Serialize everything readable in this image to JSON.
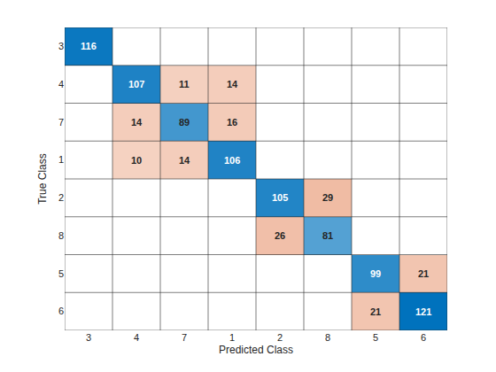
{
  "chart_data": {
    "type": "confusion_matrix",
    "x_label": "Predicted Class",
    "y_label": "True Class",
    "categories": [
      "3",
      "4",
      "7",
      "1",
      "2",
      "8",
      "5",
      "6"
    ],
    "cells": [
      [
        116,
        null,
        null,
        null,
        null,
        null,
        null,
        null
      ],
      [
        null,
        107,
        11,
        14,
        null,
        null,
        null,
        null
      ],
      [
        null,
        14,
        89,
        16,
        null,
        null,
        null,
        null
      ],
      [
        null,
        10,
        14,
        106,
        null,
        null,
        null,
        null
      ],
      [
        null,
        null,
        null,
        null,
        105,
        29,
        null,
        null
      ],
      [
        null,
        null,
        null,
        null,
        26,
        81,
        null,
        null
      ],
      [
        null,
        null,
        null,
        null,
        null,
        null,
        99,
        21
      ],
      [
        null,
        null,
        null,
        null,
        null,
        null,
        21,
        121
      ]
    ],
    "grid": true,
    "data_labels": true
  }
}
